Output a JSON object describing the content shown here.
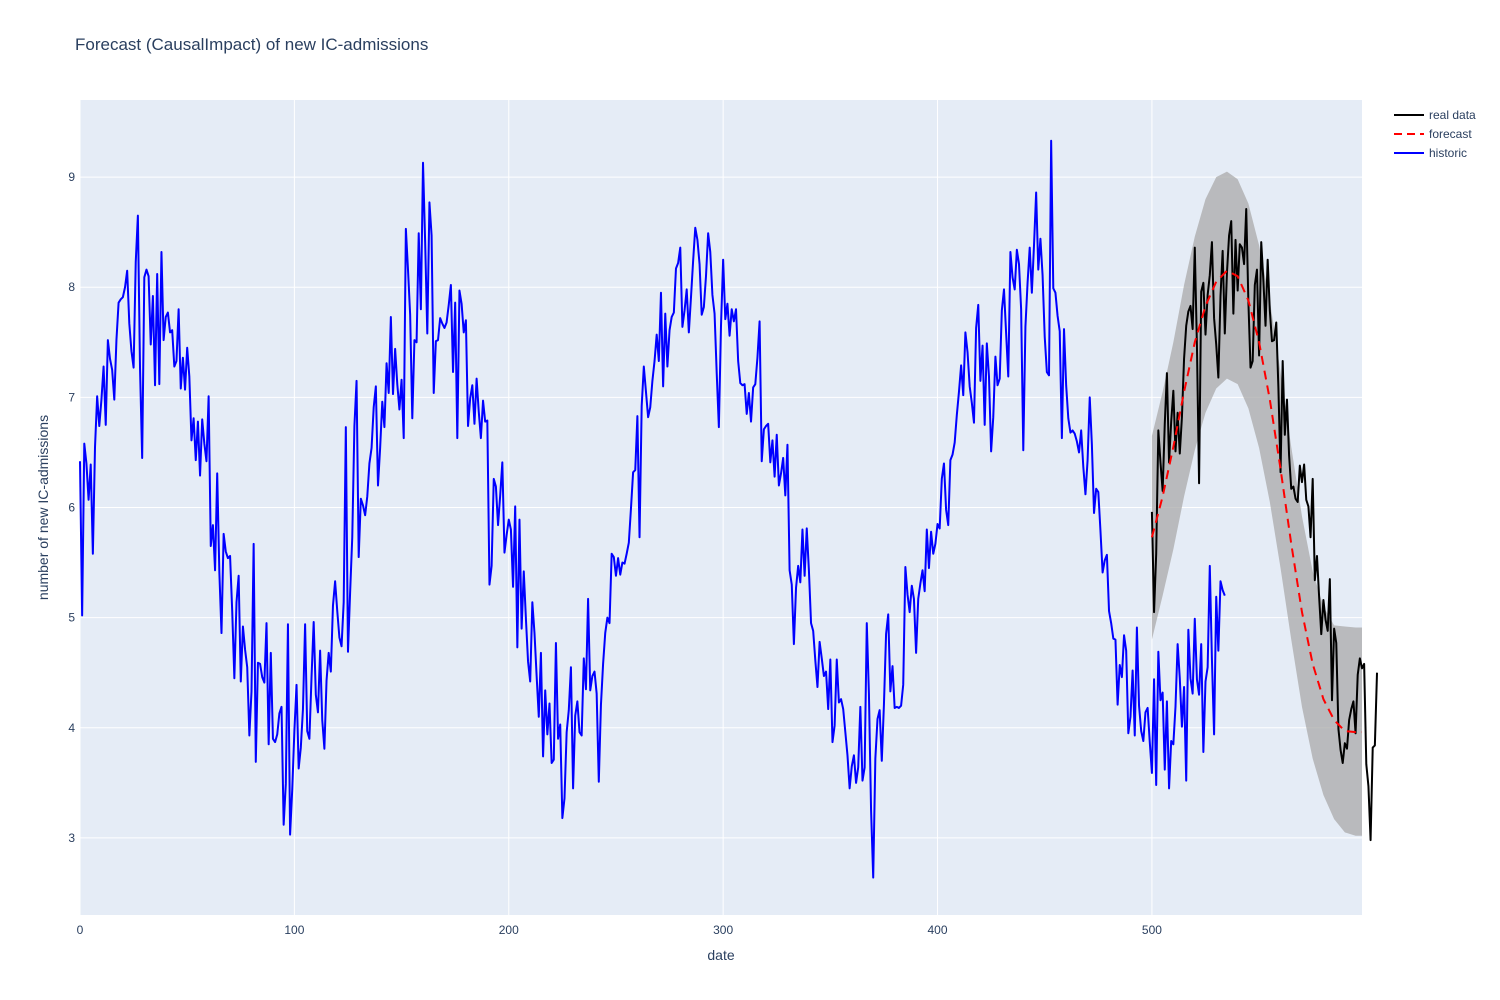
{
  "chart_data": {
    "type": "line",
    "title": "Forecast (CausalImpact) of new IC-admissions",
    "xlabel": "date",
    "ylabel": "number of new IC-admissions",
    "xlim": [
      0,
      598
    ],
    "ylim": [
      2.3,
      9.7
    ],
    "x_ticks": [
      0,
      100,
      200,
      300,
      400,
      500
    ],
    "y_ticks": [
      3,
      4,
      5,
      6,
      7,
      8,
      9
    ],
    "grid": true,
    "legend_position": "top-right",
    "legend": [
      {
        "name": "real data",
        "color": "#000000",
        "dash": "solid"
      },
      {
        "name": "forecast",
        "color": "#ff0000",
        "dash": "dashed"
      },
      {
        "name": "historic",
        "color": "#0000ff",
        "dash": "solid"
      }
    ],
    "band_color": "#a9a9a9",
    "historic": {
      "name": "historic",
      "color": "#0000ff",
      "x_start": 0,
      "x_step": 1,
      "values": [
        6.42,
        5.02,
        6.58,
        6.4,
        6.07,
        6.39,
        5.58,
        6.55,
        7.01,
        6.74,
        6.98,
        7.28,
        6.75,
        7.52,
        7.35,
        7.25,
        6.98,
        7.52,
        7.86,
        7.89,
        7.91,
        8.0,
        8.15,
        7.67,
        7.42,
        7.27,
        8.23,
        8.65,
        7.26,
        6.45,
        8.09,
        8.16,
        8.1,
        7.48,
        7.92,
        7.11,
        8.12,
        7.12,
        8.32,
        7.52,
        7.73,
        7.77,
        7.59,
        7.61,
        7.28,
        7.33,
        7.8,
        7.08,
        7.36,
        7.07,
        7.45,
        7.19,
        6.61,
        6.81,
        6.43,
        6.78,
        6.29,
        6.8,
        6.58,
        6.42,
        7.01,
        5.65,
        5.84,
        5.43,
        6.31,
        5.41,
        4.86,
        5.76,
        5.6,
        5.54,
        5.56,
        5.06,
        4.45,
        5.14,
        5.38,
        4.42,
        4.92,
        4.71,
        4.55,
        3.93,
        4.33,
        5.67,
        3.69,
        4.59,
        4.58,
        4.46,
        4.41,
        4.95,
        3.85,
        4.68,
        3.9,
        3.87,
        3.94,
        4.13,
        4.19,
        3.12,
        3.49,
        4.94,
        3.03,
        3.44,
        3.97,
        4.39,
        3.63,
        3.82,
        4.17,
        4.94,
        3.97,
        3.9,
        4.46,
        4.96,
        4.3,
        4.14,
        4.7,
        4.07,
        3.81,
        4.43,
        4.68,
        4.51,
        5.11,
        5.33,
        5.06,
        4.82,
        4.74,
        5.14,
        6.73,
        4.69,
        5.23,
        5.73,
        6.74,
        7.15,
        5.55,
        6.08,
        6.02,
        5.93,
        6.1,
        6.4,
        6.54,
        6.91,
        7.1,
        6.2,
        6.54,
        6.96,
        6.73,
        7.31,
        7.04,
        7.73,
        7.03,
        7.44,
        7.12,
        6.89,
        7.16,
        6.63,
        8.53,
        8.16,
        7.75,
        6.81,
        7.52,
        7.5,
        8.49,
        7.8,
        9.13,
        8.41,
        7.58,
        8.77,
        8.47,
        7.04,
        7.51,
        7.52,
        7.72,
        7.67,
        7.63,
        7.68,
        7.84,
        8.02,
        7.23,
        7.86,
        6.63,
        7.97,
        7.85,
        7.59,
        7.7,
        6.74,
        6.99,
        7.11,
        6.76,
        7.17,
        6.87,
        6.63,
        6.97,
        6.78,
        6.79,
        5.3,
        5.47,
        6.26,
        6.19,
        5.84,
        6.11,
        6.41,
        5.59,
        5.75,
        5.89,
        5.8,
        5.28,
        6.01,
        4.73,
        5.89,
        4.9,
        5.42,
        4.99,
        4.6,
        4.42,
        5.14,
        4.86,
        4.47,
        4.1,
        4.68,
        3.74,
        4.34,
        3.94,
        4.22,
        3.68,
        3.71,
        4.77,
        3.9,
        4.03,
        3.18,
        3.36,
        3.96,
        4.16,
        4.55,
        3.45,
        4.11,
        4.24,
        3.96,
        3.93,
        4.63,
        4.35,
        5.17,
        4.34,
        4.47,
        4.51,
        4.31,
        3.51,
        4.21,
        4.58,
        4.86,
        5.0,
        4.95,
        5.58,
        5.55,
        5.38,
        5.54,
        5.39,
        5.5,
        5.49,
        5.58,
        5.68,
        5.99,
        6.32,
        6.34,
        6.83,
        5.73,
        6.92,
        7.28,
        7.05,
        6.82,
        6.91,
        7.15,
        7.33,
        7.57,
        7.33,
        7.95,
        7.1,
        7.76,
        7.28,
        7.61,
        7.73,
        7.77,
        8.17,
        8.22,
        8.36,
        7.64,
        7.79,
        7.98,
        7.59,
        7.91,
        8.24,
        8.54,
        8.43,
        8.21,
        7.75,
        7.82,
        8.1,
        8.49,
        8.32,
        7.93,
        7.76,
        7.22,
        6.73,
        7.65,
        8.25,
        7.71,
        7.85,
        7.56,
        7.8,
        7.69,
        7.8,
        7.33,
        7.13,
        7.11,
        7.12,
        6.85,
        7.04,
        6.78,
        7.09,
        7.12,
        7.36,
        7.69,
        6.42,
        6.71,
        6.74,
        6.76,
        6.41,
        6.61,
        6.28,
        6.66,
        6.2,
        6.31,
        6.45,
        6.11,
        6.57,
        5.43,
        5.3,
        4.76,
        5.27,
        5.47,
        5.32,
        5.8,
        5.38,
        5.81,
        5.43,
        4.95,
        4.88,
        4.61,
        4.37,
        4.78,
        4.63,
        4.47,
        4.51,
        4.17,
        4.62,
        3.87,
        4.02,
        4.62,
        4.23,
        4.26,
        4.17,
        3.96,
        3.75,
        3.45,
        3.65,
        3.75,
        3.5,
        3.64,
        4.19,
        3.52,
        3.64,
        4.95,
        4.31,
        3.25,
        2.64,
        3.72,
        4.08,
        4.16,
        3.7,
        4.21,
        4.85,
        5.03,
        4.33,
        4.56,
        4.18,
        4.19,
        4.18,
        4.2,
        4.39,
        5.46,
        5.21,
        5.05,
        5.29,
        5.17,
        4.68,
        5.17,
        5.31,
        5.43,
        5.24,
        5.8,
        5.45,
        5.78,
        5.58,
        5.67,
        5.85,
        5.81,
        6.26,
        6.4,
        5.98,
        5.84,
        6.43,
        6.48,
        6.59,
        6.84,
        7.05,
        7.29,
        7.02,
        7.59,
        7.41,
        7.1,
        6.95,
        6.77,
        7.63,
        7.84,
        7.15,
        7.47,
        6.75,
        7.49,
        7.19,
        6.51,
        6.82,
        7.37,
        7.11,
        7.17,
        7.79,
        7.98,
        7.58,
        7.19,
        8.32,
        8.09,
        7.98,
        8.34,
        8.21,
        7.8,
        6.52,
        7.64,
        8.04,
        8.36,
        7.95,
        8.38,
        8.86,
        8.16,
        8.44,
        8.11,
        7.55,
        7.23,
        7.2,
        9.33,
        7.99,
        7.95,
        7.74,
        7.6,
        6.63,
        7.62,
        7.11,
        6.81,
        6.68,
        6.7,
        6.67,
        6.6,
        6.5,
        6.7,
        6.37,
        6.12,
        6.43,
        7.0,
        6.57,
        5.95,
        6.17,
        6.14,
        5.79,
        5.41,
        5.52,
        5.57,
        5.06,
        4.95,
        4.81,
        4.8,
        4.21,
        4.57,
        4.46,
        4.84,
        4.7,
        3.95,
        4.1,
        4.52,
        3.93,
        4.91,
        4.2,
        3.97,
        3.88,
        4.14,
        4.18,
        3.87,
        3.59,
        4.44,
        3.48,
        4.69,
        4.25,
        4.32,
        3.62,
        4.24,
        3.45,
        3.88,
        3.85,
        4.19,
        4.76,
        4.45,
        4.01,
        4.37,
        3.52,
        4.89,
        4.45,
        4.31,
        4.99,
        4.44,
        4.3,
        4.76,
        3.78,
        4.42,
        4.55,
        5.47,
        4.62,
        3.94,
        5.19,
        4.7,
        5.33,
        5.25,
        5.2
      ]
    },
    "real_data": {
      "name": "real data",
      "color": "#000000",
      "x_start": 500,
      "x_step": 1,
      "values": [
        5.96,
        5.05,
        5.58,
        6.7,
        6.41,
        6.15,
        6.76,
        7.22,
        6.41,
        6.78,
        7.06,
        6.51,
        6.86,
        6.49,
        6.82,
        7.35,
        7.65,
        7.78,
        7.83,
        7.62,
        8.36,
        7.47,
        6.22,
        7.96,
        8.04,
        7.57,
        7.93,
        8.11,
        8.41,
        7.72,
        7.48,
        7.18,
        7.92,
        8.33,
        7.58,
        8.13,
        8.47,
        8.6,
        7.76,
        8.43,
        7.97,
        8.39,
        8.36,
        8.21,
        8.71,
        7.87,
        7.27,
        7.33,
        8.02,
        8.16,
        7.38,
        8.41,
        8.06,
        7.65,
        8.25,
        7.79,
        7.51,
        7.52,
        7.68,
        7.09,
        6.32,
        7.33,
        6.66,
        6.98,
        6.47,
        6.17,
        6.19,
        6.08,
        6.05,
        6.38,
        6.23,
        6.39,
        6.07,
        6.01,
        5.73,
        6.26,
        5.34,
        5.56,
        5.19,
        4.85,
        5.16,
        4.98,
        4.88,
        5.35,
        4.25,
        4.9,
        4.77,
        3.99,
        3.8,
        3.68,
        3.86,
        3.81,
        4.07,
        4.17,
        4.24,
        3.95,
        4.48,
        4.63,
        4.54,
        4.58,
        3.67,
        3.47,
        2.98,
        3.82,
        3.84,
        4.5
      ]
    },
    "forecast": {
      "name": "forecast",
      "color": "#ff0000",
      "x": [
        500,
        505,
        510,
        515,
        520,
        525,
        530,
        535,
        540,
        545,
        550,
        555,
        560,
        565,
        570,
        575,
        580,
        585,
        590,
        595,
        598
      ],
      "mean": [
        5.73,
        6.1,
        6.55,
        7.05,
        7.5,
        7.83,
        8.05,
        8.15,
        8.1,
        7.88,
        7.5,
        6.98,
        6.35,
        5.67,
        5.05,
        4.58,
        4.26,
        4.07,
        3.97,
        3.96,
        3.96
      ],
      "upper": [
        6.65,
        7.05,
        7.5,
        8.02,
        8.46,
        8.8,
        9.0,
        9.05,
        8.98,
        8.76,
        8.38,
        7.88,
        7.23,
        6.55,
        5.92,
        5.42,
        5.1,
        4.93,
        4.92,
        4.91,
        4.91
      ],
      "lower": [
        4.8,
        5.2,
        5.62,
        6.1,
        6.52,
        6.86,
        7.08,
        7.17,
        7.12,
        6.9,
        6.54,
        6.05,
        5.45,
        4.8,
        4.19,
        3.72,
        3.39,
        3.17,
        3.05,
        3.02,
        3.02
      ]
    }
  }
}
